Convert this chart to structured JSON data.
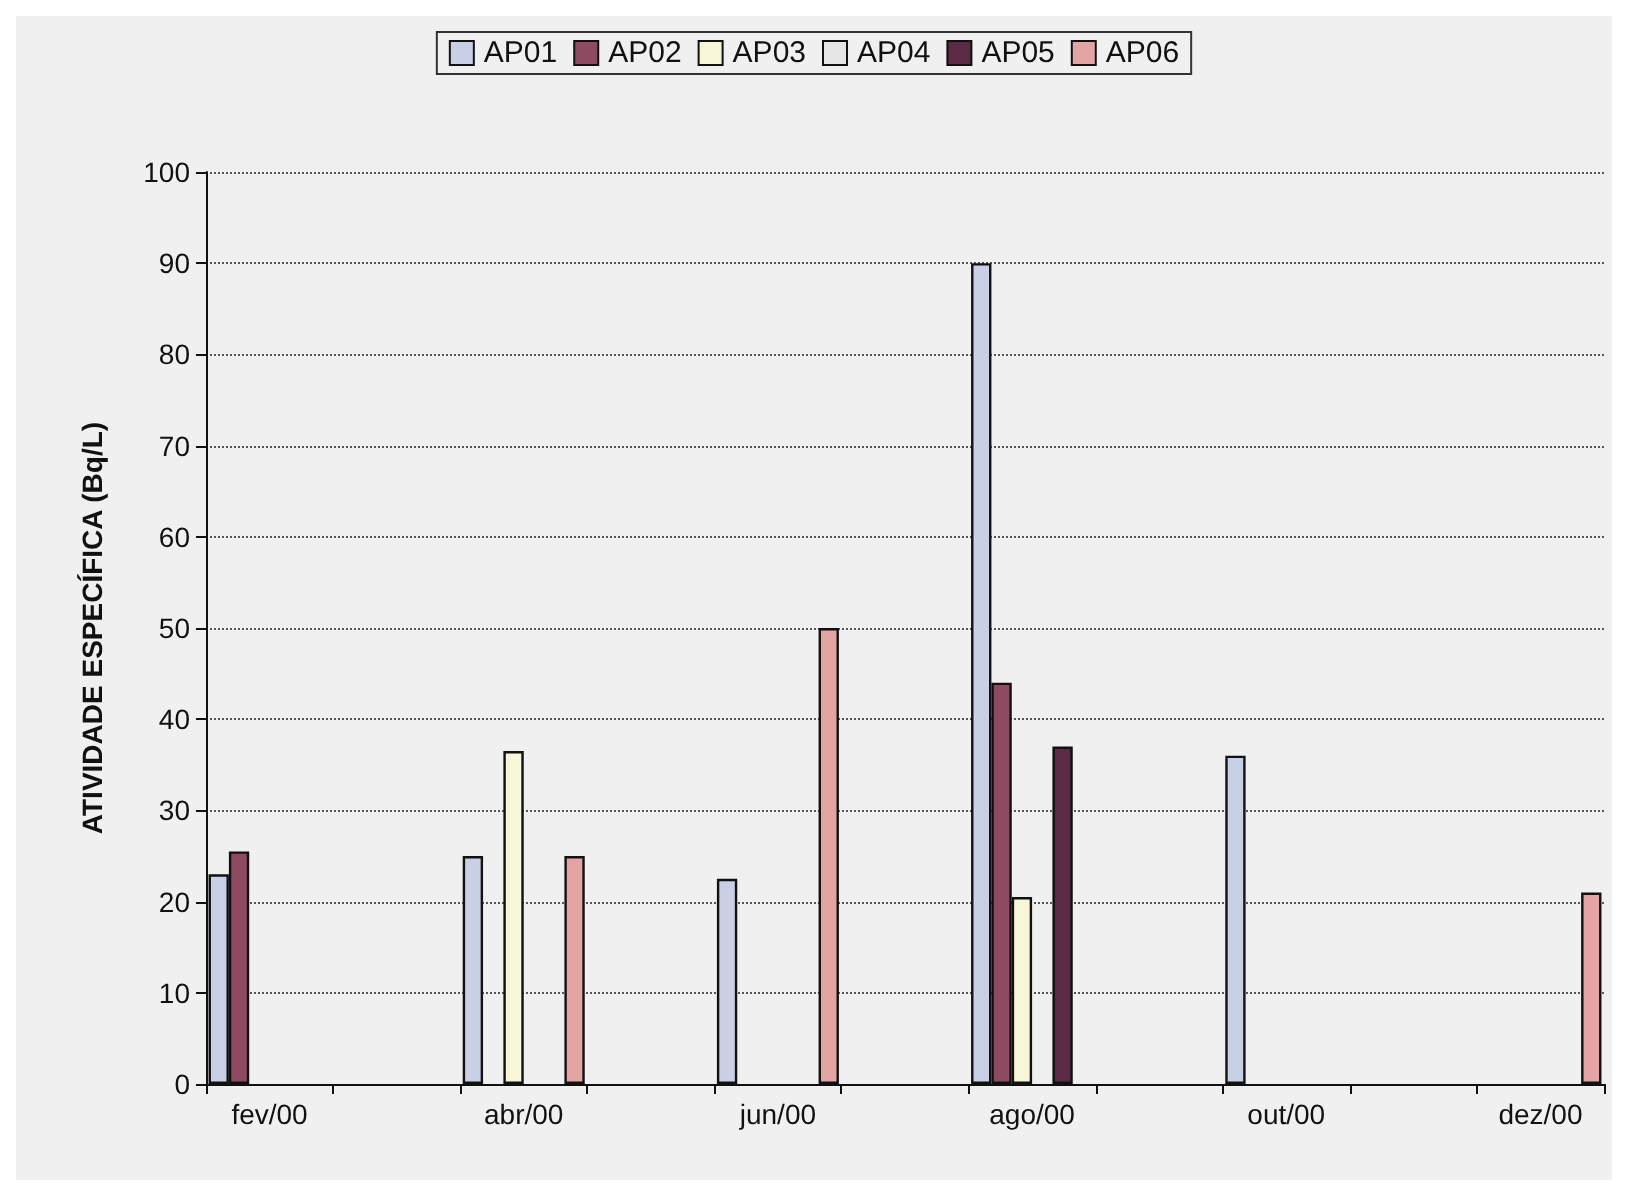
{
  "chart_data": {
    "type": "bar",
    "ylabel": "ATIVIDADE ESPECÍFICA (Bq/L)",
    "categories": [
      "fev/00",
      null,
      "abr/00",
      null,
      "jun/00",
      null,
      "ago/00",
      null,
      "out/00",
      null,
      "dez/00"
    ],
    "series": [
      {
        "name": "AP01",
        "color": "#c9d0e6",
        "values": [
          23,
          null,
          25,
          null,
          22.5,
          null,
          90,
          null,
          36,
          null,
          null
        ]
      },
      {
        "name": "AP02",
        "color": "#8e4a60",
        "values": [
          25.5,
          null,
          null,
          null,
          null,
          null,
          44,
          null,
          null,
          null,
          null
        ]
      },
      {
        "name": "AP03",
        "color": "#f8f6d8",
        "values": [
          null,
          null,
          36.5,
          null,
          null,
          null,
          20.5,
          null,
          null,
          null,
          null
        ]
      },
      {
        "name": "AP04",
        "color": "#e6e6e6",
        "values": [
          null,
          null,
          null,
          null,
          null,
          null,
          null,
          null,
          null,
          null,
          null
        ]
      },
      {
        "name": "AP05",
        "color": "#5c2a44",
        "values": [
          null,
          null,
          null,
          null,
          null,
          null,
          37,
          null,
          null,
          null,
          null
        ]
      },
      {
        "name": "AP06",
        "color": "#e4a4a4",
        "values": [
          null,
          null,
          25,
          null,
          50,
          null,
          null,
          null,
          null,
          null,
          21
        ]
      }
    ],
    "ylim": [
      0,
      100
    ],
    "yticks": [
      0,
      10,
      20,
      30,
      40,
      50,
      60,
      70,
      80,
      90,
      100
    ],
    "grid": "y",
    "legend": "top"
  }
}
